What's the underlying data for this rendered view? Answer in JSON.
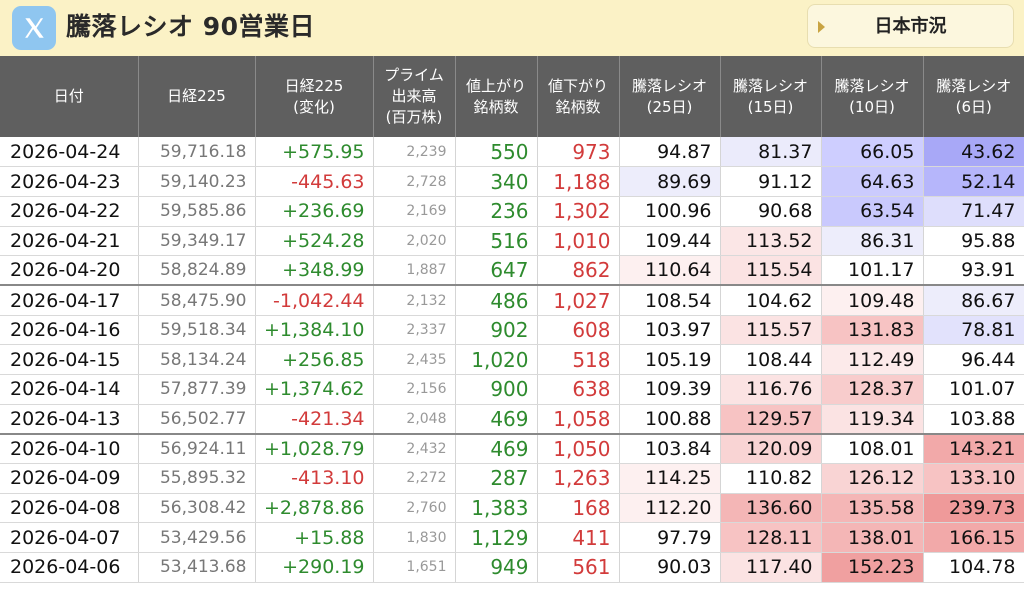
{
  "header": {
    "title": "騰落レシオ 90営業日",
    "market_button": "日本市況",
    "logo_icon": "x-logo-icon"
  },
  "colors": {
    "up": "#2e8b2e",
    "down": "#d23b3b",
    "header_bg": "#5f5f5f",
    "page_bg": "#fbf3c9"
  },
  "table": {
    "headers": [
      "日付",
      "日経225",
      "日経225\n(変化)",
      "プライム\n出来高\n(百万株)",
      "値上がり\n銘柄数",
      "値下がり\n銘柄数",
      "騰落レシオ\n(25日)",
      "騰落レシオ\n(15日)",
      "騰落レシオ\n(10日)",
      "騰落レシオ\n(6日)"
    ],
    "rows": [
      {
        "date": "2026-04-24",
        "nikkei": "59,716.18",
        "change": "+575.95",
        "vol": "2,239",
        "up": "550",
        "down": "973",
        "r25": "94.87",
        "r15": "81.37",
        "r10": "66.05",
        "r6": "43.62",
        "bg": [
          "#ffffff",
          "#ebebfb",
          "#ceceff",
          "#a8a8f7"
        ]
      },
      {
        "date": "2026-04-23",
        "nikkei": "59,140.23",
        "change": "-445.63",
        "vol": "2,728",
        "up": "340",
        "down": "1,188",
        "r25": "89.69",
        "r15": "91.12",
        "r10": "64.63",
        "r6": "52.14",
        "bg": [
          "#ededfb",
          "#ffffff",
          "#cbcbfd",
          "#b6b6fb"
        ]
      },
      {
        "date": "2026-04-22",
        "nikkei": "59,585.86",
        "change": "+236.69",
        "vol": "2,169",
        "up": "236",
        "down": "1,302",
        "r25": "100.96",
        "r15": "90.68",
        "r10": "63.54",
        "r6": "71.47",
        "bg": [
          "#ffffff",
          "#ffffff",
          "#c9c9fd",
          "#dedefc"
        ]
      },
      {
        "date": "2026-04-21",
        "nikkei": "59,349.17",
        "change": "+524.28",
        "vol": "2,020",
        "up": "516",
        "down": "1,010",
        "r25": "109.44",
        "r15": "113.52",
        "r10": "86.31",
        "r6": "95.88",
        "bg": [
          "#ffffff",
          "#fbe6e6",
          "#ededfb",
          "#ffffff"
        ]
      },
      {
        "date": "2026-04-20",
        "nikkei": "58,824.89",
        "change": "+348.99",
        "vol": "1,887",
        "up": "647",
        "down": "862",
        "r25": "110.64",
        "r15": "115.54",
        "r10": "101.17",
        "r6": "93.91",
        "bg": [
          "#fdf0f0",
          "#fbe3e3",
          "#ffffff",
          "#ffffff"
        ]
      },
      {
        "date": "2026-04-17",
        "nikkei": "58,475.90",
        "change": "-1,042.44",
        "vol": "2,132",
        "up": "486",
        "down": "1,027",
        "r25": "108.54",
        "r15": "104.62",
        "r10": "109.48",
        "r6": "86.67",
        "bg": [
          "#ffffff",
          "#ffffff",
          "#fdf0f0",
          "#ededfb"
        ],
        "week": true
      },
      {
        "date": "2026-04-16",
        "nikkei": "59,518.34",
        "change": "+1,384.10",
        "vol": "2,337",
        "up": "902",
        "down": "608",
        "r25": "103.97",
        "r15": "115.57",
        "r10": "131.83",
        "r6": "78.81",
        "bg": [
          "#ffffff",
          "#fbe3e3",
          "#f7c3c3",
          "#e2e2fc"
        ]
      },
      {
        "date": "2026-04-15",
        "nikkei": "58,134.24",
        "change": "+256.85",
        "vol": "2,435",
        "up": "1,020",
        "down": "518",
        "r25": "105.19",
        "r15": "108.44",
        "r10": "112.49",
        "r6": "96.44",
        "bg": [
          "#ffffff",
          "#ffffff",
          "#fceaea",
          "#ffffff"
        ]
      },
      {
        "date": "2026-04-14",
        "nikkei": "57,877.39",
        "change": "+1,374.62",
        "vol": "2,156",
        "up": "900",
        "down": "638",
        "r25": "109.39",
        "r15": "116.76",
        "r10": "128.37",
        "r6": "101.07",
        "bg": [
          "#ffffff",
          "#fbe3e3",
          "#f8cccc",
          "#ffffff"
        ]
      },
      {
        "date": "2026-04-13",
        "nikkei": "56,502.77",
        "change": "-421.34",
        "vol": "2,048",
        "up": "469",
        "down": "1,058",
        "r25": "100.88",
        "r15": "129.57",
        "r10": "119.34",
        "r6": "103.88",
        "bg": [
          "#ffffff",
          "#f7c3c3",
          "#fbe3e3",
          "#ffffff"
        ]
      },
      {
        "date": "2026-04-10",
        "nikkei": "56,924.11",
        "change": "+1,028.79",
        "vol": "2,432",
        "up": "469",
        "down": "1,050",
        "r25": "103.84",
        "r15": "120.09",
        "r10": "108.01",
        "r6": "143.21",
        "bg": [
          "#ffffff",
          "#f9d4d4",
          "#ffffff",
          "#f2a9a9"
        ],
        "week": true
      },
      {
        "date": "2026-04-09",
        "nikkei": "55,895.32",
        "change": "-413.10",
        "vol": "2,272",
        "up": "287",
        "down": "1,263",
        "r25": "114.25",
        "r15": "110.82",
        "r10": "126.12",
        "r6": "133.10",
        "bg": [
          "#fdf0f0",
          "#ffffff",
          "#f9d4d4",
          "#f7c3c3"
        ]
      },
      {
        "date": "2026-04-08",
        "nikkei": "56,308.42",
        "change": "+2,878.86",
        "vol": "2,760",
        "up": "1,383",
        "down": "168",
        "r25": "112.20",
        "r15": "136.60",
        "r10": "135.58",
        "r6": "239.73",
        "bg": [
          "#fdf0f0",
          "#f4b6b6",
          "#f4b6b6",
          "#ef9a9a"
        ]
      },
      {
        "date": "2026-04-07",
        "nikkei": "53,429.56",
        "change": "+15.88",
        "vol": "1,830",
        "up": "1,129",
        "down": "411",
        "r25": "97.79",
        "r15": "128.11",
        "r10": "138.01",
        "r6": "166.15",
        "bg": [
          "#ffffff",
          "#f7c3c3",
          "#f4b6b6",
          "#f2a9a9"
        ]
      },
      {
        "date": "2026-04-06",
        "nikkei": "53,413.68",
        "change": "+290.19",
        "vol": "1,651",
        "up": "949",
        "down": "561",
        "r25": "90.03",
        "r15": "117.40",
        "r10": "152.23",
        "r6": "104.78",
        "bg": [
          "#ffffff",
          "#fbe3e3",
          "#f0a0a0",
          "#ffffff"
        ]
      }
    ]
  }
}
